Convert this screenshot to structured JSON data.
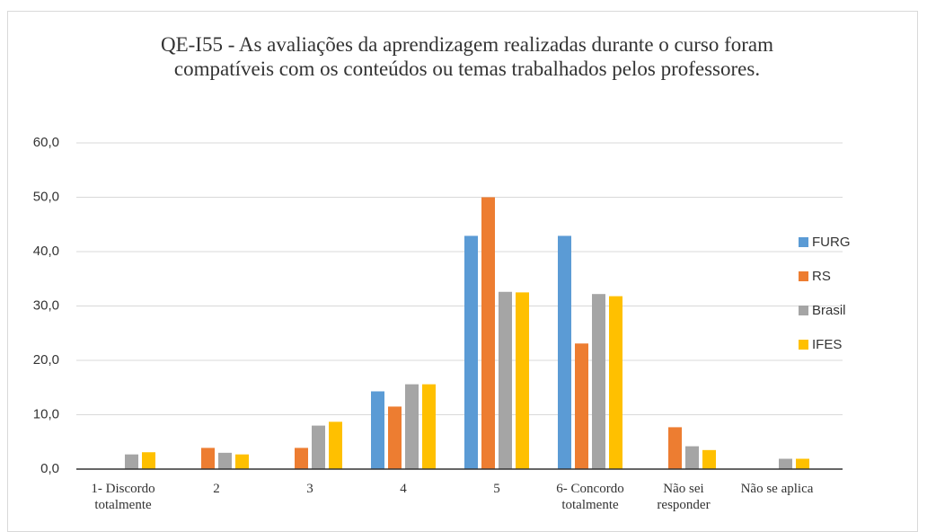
{
  "chart_data": {
    "type": "bar",
    "title": "QE-I55 - As avaliações da aprendizagem realizadas durante o curso foram compatíveis com os conteúdos ou temas trabalhados pelos professores.",
    "categories": [
      "1- Discordo totalmente",
      "2",
      "3",
      "4",
      "5",
      "6- Concordo totalmente",
      "Não sei responder",
      "Não se aplica"
    ],
    "series": [
      {
        "name": "FURG",
        "color": "#5b9bd5",
        "values": [
          0,
          0,
          0,
          14.3,
          42.9,
          42.9,
          0,
          0
        ]
      },
      {
        "name": "RS",
        "color": "#ed7d31",
        "values": [
          0,
          3.9,
          3.9,
          11.5,
          50.0,
          23.1,
          7.7,
          0
        ]
      },
      {
        "name": "Brasil",
        "color": "#a5a5a5",
        "values": [
          2.7,
          3.0,
          8.0,
          15.6,
          32.6,
          32.2,
          4.2,
          1.9
        ]
      },
      {
        "name": "IFES",
        "color": "#ffc000",
        "values": [
          3.1,
          2.7,
          8.7,
          15.6,
          32.5,
          31.8,
          3.5,
          1.9
        ]
      }
    ],
    "ylim": [
      0,
      60
    ],
    "yticks": [
      {
        "value": 0,
        "label": "0,0"
      },
      {
        "value": 10,
        "label": "10,0"
      },
      {
        "value": 20,
        "label": "20,0"
      },
      {
        "value": 30,
        "label": "30,0"
      },
      {
        "value": 40,
        "label": "40,0"
      },
      {
        "value": 50,
        "label": "50,0"
      },
      {
        "value": 60,
        "label": "60,0"
      }
    ],
    "grid": true,
    "legend": "right"
  }
}
